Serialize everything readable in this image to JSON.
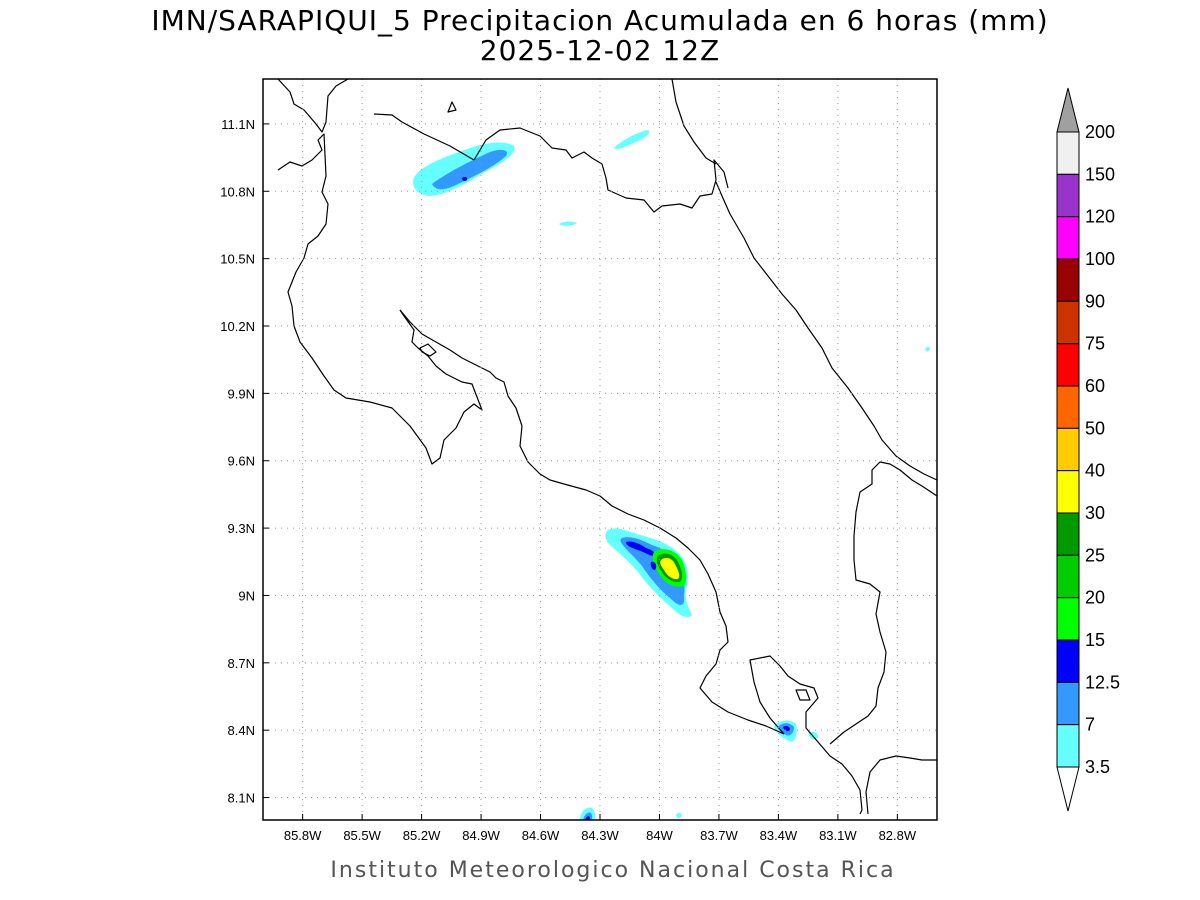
{
  "title": {
    "line1": "IMN/SARAPIQUI_5 Precipitacion Acumulada en 6 horas (mm)",
    "line2": "2025-12-02 12Z"
  },
  "footer": "Instituto Meteorologico Nacional Costa Rica",
  "map": {
    "lon_range": [
      -86.0,
      -82.6
    ],
    "lat_range": [
      8.0,
      11.3
    ],
    "x_ticks": [
      "85.8W",
      "85.5W",
      "85.2W",
      "84.9W",
      "84.6W",
      "84.3W",
      "84W",
      "83.7W",
      "83.4W",
      "83.1W",
      "82.8W"
    ],
    "x_tick_values": [
      -85.8,
      -85.5,
      -85.2,
      -84.9,
      -84.6,
      -84.3,
      -84.0,
      -83.7,
      -83.4,
      -83.1,
      -82.8
    ],
    "y_ticks": [
      "11.1N",
      "10.8N",
      "10.5N",
      "10.2N",
      "9.9N",
      "9.6N",
      "9.3N",
      "9N",
      "8.7N",
      "8.4N",
      "8.1N"
    ],
    "y_tick_values": [
      11.1,
      10.8,
      10.5,
      10.2,
      9.9,
      9.6,
      9.3,
      9.0,
      8.7,
      8.4,
      8.1
    ],
    "grid": "dotted"
  },
  "legend": {
    "labels": [
      "200",
      "150",
      "120",
      "100",
      "90",
      "75",
      "60",
      "50",
      "40",
      "30",
      "25",
      "20",
      "15",
      "12.5",
      "7",
      "3.5"
    ],
    "colors": [
      "#f0f0f0",
      "#9933cc",
      "#ff00ff",
      "#990000",
      "#cc3300",
      "#ff0000",
      "#ff6600",
      "#ffcc00",
      "#ffff00",
      "#009900",
      "#00cc00",
      "#00ff00",
      "#0000ff",
      "#3399ff",
      "#66ffff"
    ],
    "top_arrow_color": "#a0a0a0",
    "bottom_arrow_color": "#ffffff"
  },
  "precip_areas": [
    {
      "name": "north-plume",
      "level_mm": 3.5
    },
    {
      "name": "north-plume-core",
      "level_mm": 7
    },
    {
      "name": "caribbean-north-patch",
      "level_mm": 3.5
    },
    {
      "name": "central-patch",
      "level_mm": 3.5
    },
    {
      "name": "talamanca-max",
      "level_mm": 40
    },
    {
      "name": "osa-patch",
      "level_mm": 12.5
    },
    {
      "name": "south-edge-patch",
      "level_mm": 12.5
    }
  ]
}
